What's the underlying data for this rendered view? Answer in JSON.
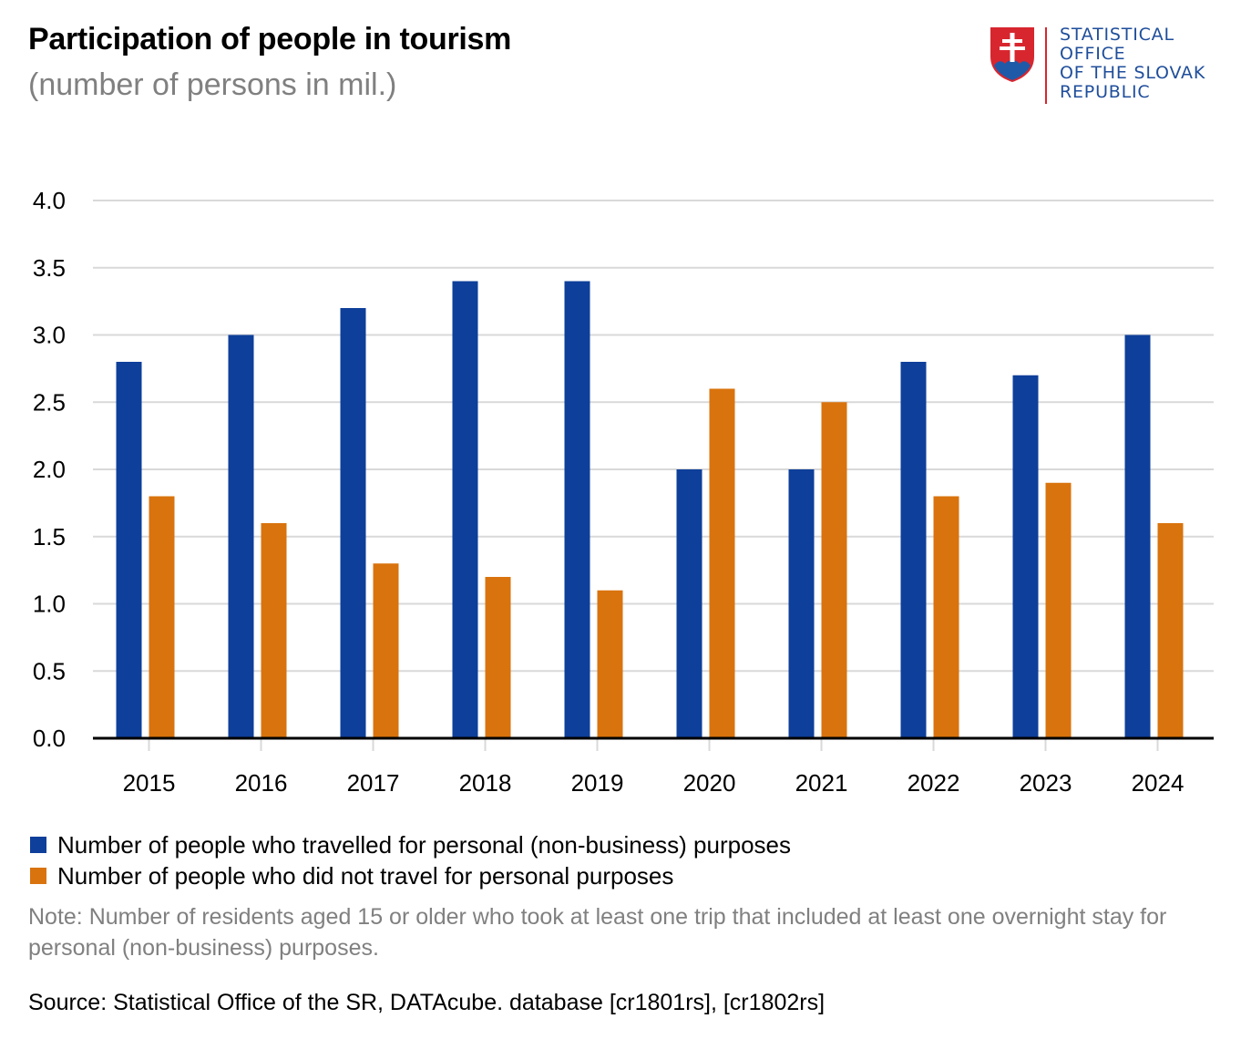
{
  "header": {
    "title": "Participation of people in tourism",
    "subtitle": "(number of persons in mil.)"
  },
  "logo": {
    "lines": [
      "STATISTICAL",
      "OFFICE",
      "OF THE SLOVAK",
      "REPUBLIC"
    ],
    "emblem": "slovak-coat-of-arms-icon"
  },
  "colors": {
    "travelled": "#0e3f9a",
    "not_travelled": "#d9730d",
    "grid": "#d9d9d9",
    "axis": "#000000"
  },
  "chart_data": {
    "type": "bar",
    "categories": [
      "2015",
      "2016",
      "2017",
      "2018",
      "2019",
      "2020",
      "2021",
      "2022",
      "2023",
      "2024"
    ],
    "series": [
      {
        "name": "Number of people who travelled for personal (non-business) purposes",
        "values": [
          2.8,
          3.0,
          3.2,
          3.4,
          3.4,
          2.0,
          2.0,
          2.8,
          2.7,
          3.0
        ]
      },
      {
        "name": "Number of people who did not travel for personal purposes",
        "values": [
          1.8,
          1.6,
          1.3,
          1.2,
          1.1,
          2.6,
          2.5,
          1.8,
          1.9,
          1.6
        ]
      }
    ],
    "yticks": [
      "0.0",
      "0.5",
      "1.0",
      "1.5",
      "2.0",
      "2.5",
      "3.0",
      "3.5",
      "4.0"
    ],
    "ylim": [
      0,
      4
    ],
    "grid": true,
    "legend_position": "bottom-left"
  },
  "footer": {
    "note": "Note: Number of residents aged 15 or older who took at least one trip that included at least one overnight stay for personal (non-business) purposes.",
    "source": "Source: Statistical Office of the SR, DATAcube. database [cr1801rs], [cr1802rs]"
  }
}
